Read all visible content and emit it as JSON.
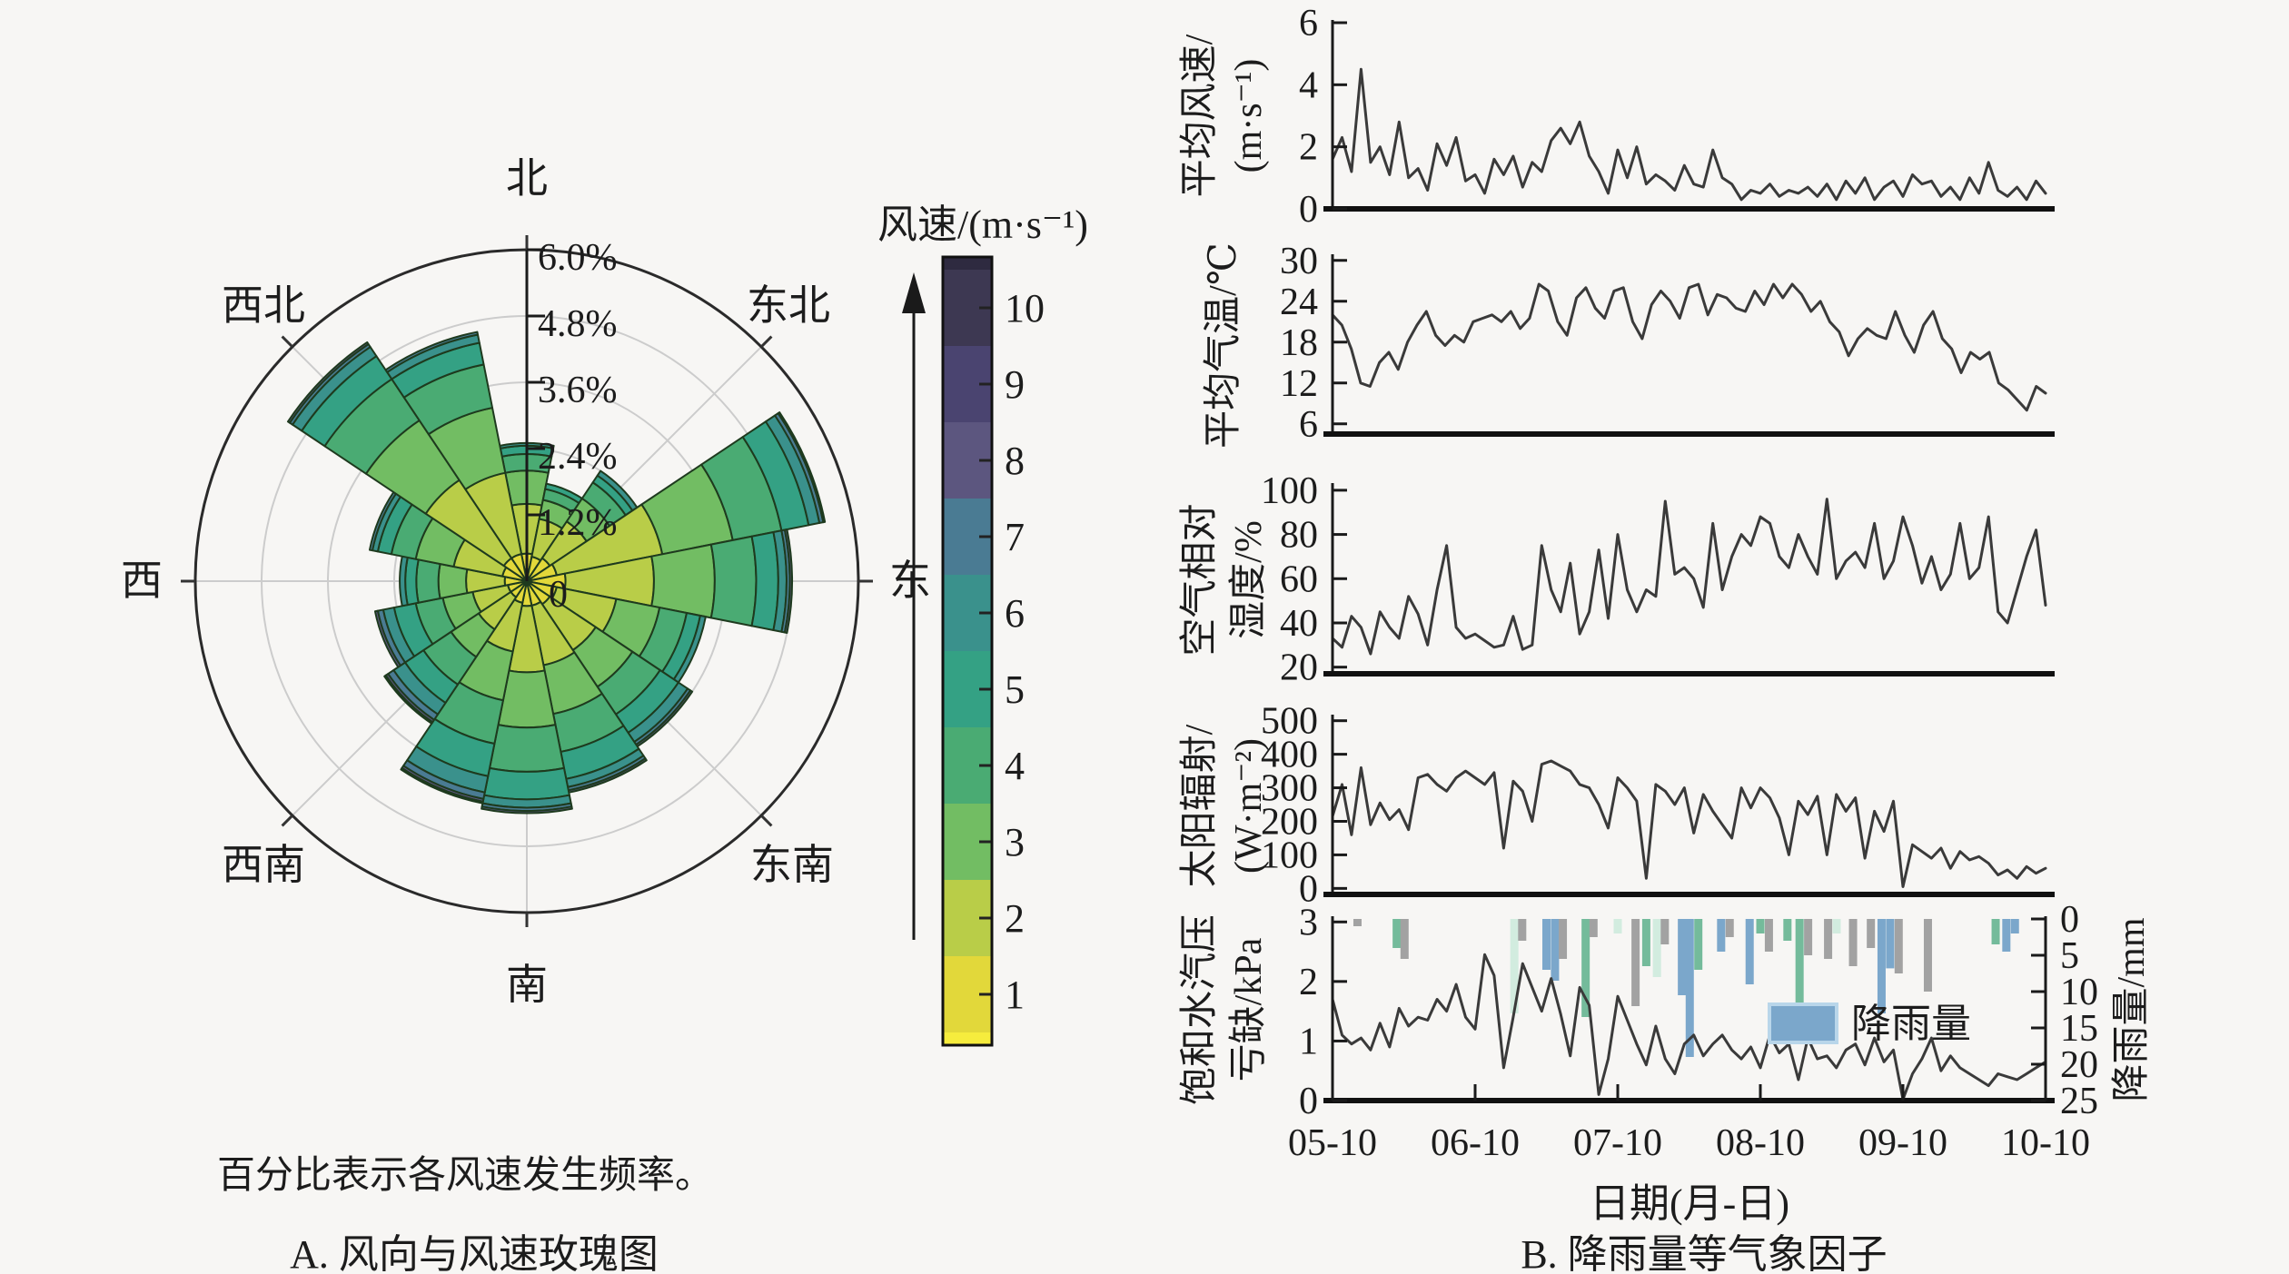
{
  "figure": {
    "background": "#f7f6f4",
    "caption_note": "百分比表示各风速发生频率。",
    "caption_a": "A. 风向与风速玫瑰图",
    "caption_b": "B. 降雨量等气象因子"
  },
  "rose": {
    "dir_labels": {
      "N": "北",
      "NE": "东北",
      "E": "东",
      "SE": "东南",
      "S": "南",
      "SW": "西南",
      "W": "西",
      "NW": "西北"
    },
    "ring_labels": [
      "0",
      "1.2%",
      "2.4%",
      "3.6%",
      "4.8%",
      "6.0%"
    ],
    "ring_color": "#cccccc",
    "outline_color": "#2a2a2a"
  },
  "colorbar": {
    "title": "风速/(m·s⁻¹)",
    "labels": [
      "10",
      "9",
      "8",
      "7",
      "6",
      "5",
      "4",
      "3",
      "2",
      "1"
    ],
    "colors": [
      "#3d3852",
      "#4a4470",
      "#5c567f",
      "#4a7b93",
      "#3a918c",
      "#34a184",
      "#4aab73",
      "#72bd63",
      "#b9cd48",
      "#e2d83a"
    ],
    "cap_top": "#2e2a40",
    "cap_bottom": "#f6ec3d"
  },
  "chart_data": {
    "windrose": {
      "type": "windrose",
      "units": "%",
      "rmax_pct": 6.0,
      "ring_step_pct": 1.2,
      "directions": [
        "N",
        "NNE",
        "NE",
        "ENE",
        "E",
        "ESE",
        "SE",
        "SSE",
        "S",
        "SSW",
        "SW",
        "WSW",
        "W",
        "WNW",
        "NW",
        "NNW"
      ],
      "speed_bins": [
        1,
        2,
        3,
        4,
        5,
        6,
        7,
        8,
        9,
        10
      ],
      "values": [
        [
          0.5,
          0.9,
          0.6,
          0.3,
          0.15,
          0.05,
          0,
          0,
          0,
          0
        ],
        [
          0.45,
          0.7,
          0.35,
          0.2,
          0.1,
          0,
          0,
          0,
          0,
          0
        ],
        [
          0.5,
          0.8,
          0.5,
          0.35,
          0.15,
          0.1,
          0,
          0,
          0,
          0
        ],
        [
          0.55,
          1.95,
          1.3,
          0.9,
          0.5,
          0.2,
          0.07,
          0.03,
          0,
          0
        ],
        [
          0.7,
          1.6,
          1.1,
          0.75,
          0.4,
          0.15,
          0.06,
          0.04,
          0,
          0
        ],
        [
          0.55,
          1.1,
          0.8,
          0.5,
          0.25,
          0.1,
          0,
          0,
          0,
          0
        ],
        [
          0.5,
          1.0,
          0.8,
          0.6,
          0.4,
          0.2,
          0.06,
          0.04,
          0,
          0
        ],
        [
          0.45,
          1.1,
          0.9,
          0.7,
          0.5,
          0.15,
          0.06,
          0.04,
          0,
          0
        ],
        [
          0.45,
          1.2,
          1.0,
          0.8,
          0.5,
          0.15,
          0.06,
          0.04,
          0,
          0
        ],
        [
          0.4,
          0.9,
          0.9,
          0.8,
          0.6,
          0.3,
          0.12,
          0.05,
          0.03,
          0
        ],
        [
          0.35,
          0.7,
          0.6,
          0.6,
          0.4,
          0.25,
          0.12,
          0.05,
          0.03,
          0
        ],
        [
          0.35,
          0.65,
          0.55,
          0.5,
          0.4,
          0.2,
          0.1,
          0.05,
          0,
          0
        ],
        [
          0.4,
          0.7,
          0.5,
          0.4,
          0.2,
          0.1,
          0,
          0,
          0,
          0
        ],
        [
          0.45,
          0.9,
          0.7,
          0.45,
          0.25,
          0.1,
          0.05,
          0,
          0,
          0
        ],
        [
          0.5,
          1.7,
          1.3,
          0.9,
          0.5,
          0.2,
          0.06,
          0.04,
          0,
          0
        ],
        [
          0.5,
          1.5,
          1.2,
          0.8,
          0.4,
          0.15,
          0.05,
          0,
          0,
          0
        ]
      ]
    },
    "x_categories": [
      "05-10",
      "06-10",
      "07-10",
      "08-10",
      "09-10",
      "10-10"
    ],
    "xlabel": "日期(月-日)",
    "line_color": "#3a3a3a",
    "timeseries": [
      {
        "id": "wind_speed",
        "type": "line",
        "ylabel_lines": [
          "平均风速/",
          "(m·s⁻¹)"
        ],
        "yticks": [
          0,
          2,
          4,
          6
        ],
        "ymin": 0,
        "ymax": 6,
        "values": [
          1.6,
          2.3,
          1.2,
          4.5,
          1.5,
          2.0,
          1.1,
          2.8,
          1.0,
          1.3,
          0.6,
          2.1,
          1.4,
          2.3,
          0.9,
          1.1,
          0.5,
          1.6,
          1.1,
          1.7,
          0.7,
          1.5,
          1.2,
          2.2,
          2.6,
          2.1,
          2.8,
          1.7,
          1.2,
          0.5,
          1.9,
          1.0,
          2.0,
          0.8,
          1.1,
          0.9,
          0.6,
          1.4,
          0.8,
          0.7,
          1.9,
          1.0,
          0.8,
          0.3,
          0.6,
          0.5,
          0.8,
          0.4,
          0.6,
          0.5,
          0.7,
          0.4,
          0.8,
          0.3,
          0.9,
          0.5,
          1.0,
          0.3,
          0.7,
          0.9,
          0.4,
          1.1,
          0.8,
          0.9,
          0.4,
          0.7,
          0.3,
          1.0,
          0.5,
          1.5,
          0.6,
          0.4,
          0.7,
          0.3,
          0.9,
          0.5
        ]
      },
      {
        "id": "air_temperature",
        "type": "line",
        "ylabel_lines": [
          "平均气温/℃"
        ],
        "yticks": [
          6,
          12,
          18,
          24,
          30
        ],
        "ymin": 4.5,
        "ymax": 30.5,
        "values": [
          22,
          20.5,
          17,
          12,
          11.5,
          15,
          16.5,
          14,
          18,
          20.5,
          22.5,
          19,
          17.5,
          19,
          18,
          21,
          21.5,
          22,
          21,
          22.5,
          20,
          21.5,
          26.5,
          25.5,
          21,
          19,
          24.5,
          26,
          23,
          21.5,
          25.5,
          26,
          21,
          18.5,
          23.5,
          25.5,
          24,
          21.5,
          26,
          26.5,
          22,
          25,
          24.5,
          23,
          22.5,
          25.5,
          23.5,
          26.5,
          24.5,
          26.5,
          25,
          22.5,
          24,
          21,
          19.5,
          16,
          18.5,
          20,
          19,
          18.5,
          22.5,
          19,
          16.5,
          20.5,
          22.5,
          18.5,
          17,
          13.5,
          16.5,
          15.5,
          16.5,
          12,
          11,
          9.5,
          8,
          11.5,
          10.5
        ]
      },
      {
        "id": "relative_humidity",
        "type": "line",
        "ylabel_lines": [
          "空气相对",
          "湿度/%"
        ],
        "yticks": [
          20,
          40,
          60,
          80,
          100
        ],
        "ymin": 17,
        "ymax": 102,
        "values": [
          33,
          29,
          43,
          38,
          26,
          45,
          38,
          33,
          52,
          44,
          30,
          55,
          75,
          38,
          33,
          35,
          32,
          29,
          30,
          43,
          28,
          30,
          75,
          55,
          45,
          67,
          35,
          45,
          73,
          42,
          80,
          55,
          45,
          55,
          52,
          95,
          62,
          65,
          60,
          47,
          85,
          55,
          70,
          80,
          75,
          88,
          85,
          70,
          65,
          80,
          70,
          62,
          96,
          60,
          68,
          72,
          65,
          85,
          60,
          68,
          88,
          75,
          58,
          70,
          55,
          62,
          85,
          60,
          65,
          88,
          45,
          40,
          55,
          70,
          82,
          48
        ]
      },
      {
        "id": "solar_radiation",
        "type": "line",
        "ylabel_lines": [
          "太阳辐射/",
          "(W·m⁻²)"
        ],
        "yticks": [
          0,
          100,
          200,
          300,
          400,
          500
        ],
        "ymin": -18,
        "ymax": 510,
        "values": [
          215,
          310,
          160,
          360,
          190,
          255,
          205,
          235,
          175,
          330,
          340,
          310,
          290,
          330,
          350,
          330,
          310,
          345,
          120,
          320,
          290,
          200,
          370,
          380,
          365,
          350,
          310,
          300,
          250,
          180,
          330,
          300,
          260,
          30,
          310,
          290,
          250,
          300,
          165,
          280,
          230,
          190,
          150,
          300,
          240,
          300,
          270,
          210,
          100,
          260,
          220,
          275,
          100,
          280,
          230,
          270,
          90,
          230,
          170,
          260,
          5,
          130,
          110,
          90,
          120,
          60,
          110,
          85,
          95,
          75,
          40,
          55,
          30,
          65,
          45,
          60
        ]
      },
      {
        "id": "vpd",
        "type": "line",
        "ylabel_lines": [
          "饱和水汽压",
          "亏缺/kPa"
        ],
        "yticks": [
          0,
          1,
          2,
          3
        ],
        "ymin": 0,
        "ymax": 3.05,
        "values": [
          1.7,
          1.1,
          0.95,
          1.05,
          0.85,
          1.3,
          0.9,
          1.55,
          1.25,
          1.4,
          1.35,
          1.7,
          1.5,
          1.95,
          1.4,
          1.2,
          2.45,
          2.1,
          0.55,
          1.4,
          2.3,
          1.9,
          1.5,
          2.05,
          1.45,
          0.75,
          1.9,
          1.6,
          0.1,
          0.7,
          1.75,
          1.35,
          0.95,
          0.6,
          1.25,
          0.7,
          0.45,
          0.95,
          1.1,
          0.75,
          0.95,
          1.1,
          0.85,
          0.7,
          0.9,
          0.55,
          1.1,
          0.8,
          0.95,
          0.35,
          1.05,
          0.7,
          0.75,
          0.55,
          0.85,
          0.95,
          0.6,
          1.05,
          0.65,
          0.85,
          0.02,
          0.45,
          0.7,
          1.05,
          0.5,
          0.75,
          0.55,
          0.45,
          0.35,
          0.25,
          0.45,
          0.4,
          0.35,
          0.45,
          0.55,
          0.65
        ]
      }
    ],
    "rain": {
      "type": "bar",
      "label": "降雨量",
      "ylabel": "降雨量/mm",
      "yticks": [
        0,
        5,
        10,
        15,
        20,
        25
      ],
      "ymax": 25,
      "axis_inverted": true,
      "colors": {
        "blue": "#7ba7cb",
        "green": "#74bb9b",
        "mint": "#d2ecdf",
        "gray": "#a2a2a2"
      },
      "bars": [
        [
          0.035,
          1.0,
          "gray"
        ],
        [
          0.09,
          4.0,
          "green"
        ],
        [
          0.101,
          5.5,
          "gray"
        ],
        [
          0.255,
          13.0,
          "mint"
        ],
        [
          0.266,
          3.0,
          "gray"
        ],
        [
          0.3,
          7.0,
          "blue"
        ],
        [
          0.312,
          8.5,
          "blue"
        ],
        [
          0.323,
          5.5,
          "gray"
        ],
        [
          0.355,
          13.5,
          "green"
        ],
        [
          0.366,
          2.5,
          "gray"
        ],
        [
          0.4,
          2.0,
          "mint"
        ],
        [
          0.425,
          12.0,
          "gray"
        ],
        [
          0.44,
          6.5,
          "green"
        ],
        [
          0.455,
          8.0,
          "mint"
        ],
        [
          0.466,
          3.5,
          "gray"
        ],
        [
          0.49,
          10.5,
          "blue"
        ],
        [
          0.501,
          19.0,
          "blue"
        ],
        [
          0.513,
          7.0,
          "green"
        ],
        [
          0.545,
          4.5,
          "blue"
        ],
        [
          0.557,
          2.5,
          "gray"
        ],
        [
          0.585,
          9.0,
          "blue"
        ],
        [
          0.6,
          2.0,
          "green"
        ],
        [
          0.612,
          4.5,
          "gray"
        ],
        [
          0.638,
          3.0,
          "green"
        ],
        [
          0.655,
          13.5,
          "green"
        ],
        [
          0.667,
          5.0,
          "gray"
        ],
        [
          0.695,
          5.5,
          "gray"
        ],
        [
          0.707,
          2.0,
          "mint"
        ],
        [
          0.73,
          6.5,
          "gray"
        ],
        [
          0.755,
          4.0,
          "gray"
        ],
        [
          0.77,
          13.0,
          "blue"
        ],
        [
          0.782,
          6.8,
          "blue"
        ],
        [
          0.794,
          7.5,
          "gray"
        ],
        [
          0.835,
          10.0,
          "gray"
        ],
        [
          0.93,
          3.5,
          "green"
        ],
        [
          0.945,
          4.5,
          "blue"
        ],
        [
          0.957,
          2.0,
          "blue"
        ]
      ]
    }
  }
}
